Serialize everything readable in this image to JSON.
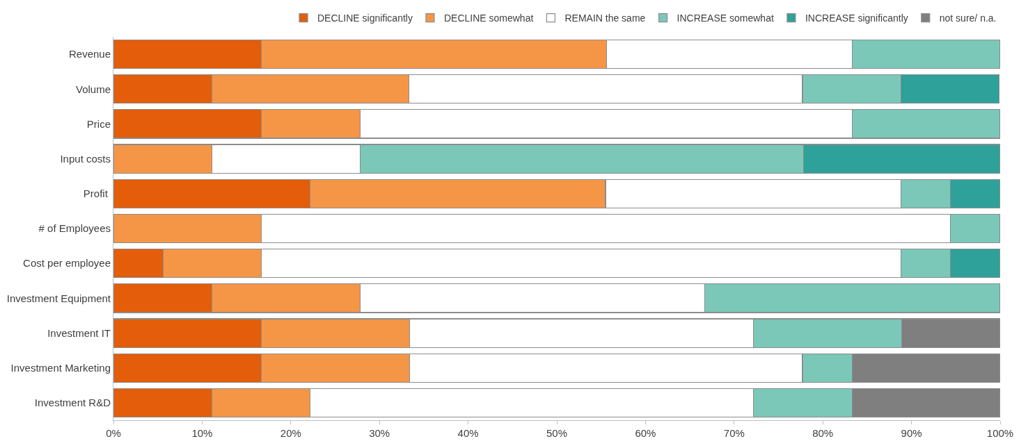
{
  "chart_data": {
    "type": "bar",
    "orientation": "horizontal",
    "stacked": true,
    "categories": [
      "Revenue",
      "Volume",
      "Price",
      "Input costs",
      "Profit ",
      "# of Employees",
      "Cost per employee",
      "Investment Equipment",
      "Investment IT",
      "Investment Marketing",
      "Investment R&D"
    ],
    "series": [
      {
        "name": "DECLINE significantly",
        "color": "#e35d0a",
        "values": [
          16.7,
          11.1,
          16.7,
          0,
          22.2,
          0,
          5.6,
          11.1,
          16.7,
          16.7,
          11.1
        ]
      },
      {
        "name": "DECLINE somewhat",
        "color": "#f59647",
        "values": [
          38.9,
          22.2,
          11.1,
          11.1,
          33.3,
          16.7,
          11.1,
          16.7,
          16.7,
          16.7,
          11.1
        ]
      },
      {
        "name": "REMAIN the same",
        "color": "#ffffff",
        "values": [
          27.7,
          44.4,
          55.5,
          16.7,
          33.3,
          77.7,
          72.1,
          38.9,
          38.8,
          44.3,
          50.0
        ]
      },
      {
        "name": "INCREASE somewhat",
        "color": "#7bc8b9",
        "values": [
          16.7,
          11.1,
          16.7,
          50.0,
          5.6,
          5.6,
          5.6,
          33.3,
          16.7,
          5.6,
          11.1
        ]
      },
      {
        "name": "INCREASE significantly",
        "color": "#2ea19a",
        "values": [
          0,
          11.1,
          0,
          22.2,
          5.6,
          0,
          5.6,
          0,
          0,
          0,
          0
        ]
      },
      {
        "name": "not sure/ n.a.",
        "color": "#7f7f7f",
        "values": [
          0,
          0,
          0,
          0,
          0,
          0,
          0,
          0,
          11.1,
          16.7,
          16.7
        ]
      }
    ],
    "xlim": [
      0,
      100
    ],
    "xticks": [
      {
        "value": 0,
        "label": "0%"
      },
      {
        "value": 10,
        "label": "10%"
      },
      {
        "value": 20,
        "label": "20%"
      },
      {
        "value": 30,
        "label": "30%"
      },
      {
        "value": 40,
        "label": "40%"
      },
      {
        "value": 50,
        "label": "50%"
      },
      {
        "value": 60,
        "label": "60%"
      },
      {
        "value": 70,
        "label": "70%"
      },
      {
        "value": 80,
        "label": "80%"
      },
      {
        "value": 90,
        "label": "90%"
      },
      {
        "value": 100,
        "label": "100%"
      }
    ],
    "legend": "top right"
  }
}
